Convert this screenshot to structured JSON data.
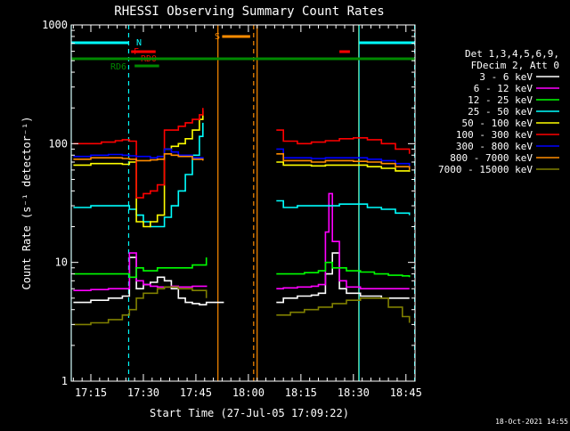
{
  "chart_data": {
    "type": "line",
    "title": "RHESSI Observing Summary Count Rates",
    "xlabel": "Start Time (27-Jul-05 17:09:22)",
    "ylabel": "Count Rate (s⁻¹ detector⁻¹)",
    "ylim": [
      1,
      1000
    ],
    "yscale": "log",
    "x_range_minutes_after_17_00": [
      9.4,
      107.6
    ],
    "x_ticks": [
      {
        "label": "17:15",
        "minute": 15
      },
      {
        "label": "17:30",
        "minute": 30
      },
      {
        "label": "17:45",
        "minute": 45
      },
      {
        "label": "18:00",
        "minute": 60
      },
      {
        "label": "18:15",
        "minute": 75
      },
      {
        "label": "18:30",
        "minute": 90
      },
      {
        "label": "18:45",
        "minute": 105
      }
    ],
    "y_ticks": [
      {
        "label": "1",
        "value": 1
      },
      {
        "label": "10",
        "value": 10
      },
      {
        "label": "100",
        "value": 100
      },
      {
        "label": "1000",
        "value": 1000
      }
    ],
    "legend_header": [
      "Det 1,3,4,5,6,9,",
      "FDecim 2, Att 0"
    ],
    "legend_placement": "right",
    "timestamp": "18-Oct-2021 14:55",
    "series": [
      {
        "name": "3 - 6 keV",
        "color": "#ffffff",
        "points": [
          [
            10,
            4.6
          ],
          [
            15,
            4.8
          ],
          [
            20,
            5.0
          ],
          [
            24,
            5.2
          ],
          [
            26,
            11
          ],
          [
            28,
            6
          ],
          [
            30,
            6.5
          ],
          [
            32,
            6.8
          ],
          [
            34,
            7.5
          ],
          [
            36,
            7
          ],
          [
            38,
            6
          ],
          [
            40,
            5
          ],
          [
            42,
            4.6
          ],
          [
            44,
            4.5
          ],
          [
            46,
            4.4
          ],
          [
            48,
            4.6
          ],
          [
            53,
            4.6
          ],
          [
            68,
            4.6
          ],
          [
            70,
            5
          ],
          [
            72,
            5
          ],
          [
            74,
            5.2
          ],
          [
            76,
            5.2
          ],
          [
            78,
            5.3
          ],
          [
            80,
            5.5
          ],
          [
            82,
            8
          ],
          [
            84,
            12
          ],
          [
            86,
            6
          ],
          [
            88,
            5.5
          ],
          [
            90,
            5.5
          ],
          [
            92,
            5.2
          ],
          [
            94,
            5.2
          ],
          [
            96,
            5.2
          ],
          [
            98,
            5.0
          ],
          [
            100,
            5.0
          ],
          [
            102,
            5
          ],
          [
            104,
            5
          ],
          [
            106,
            5
          ]
        ]
      },
      {
        "name": "6 - 12 keV",
        "color": "#ff00ff",
        "points": [
          [
            10,
            5.8
          ],
          [
            15,
            5.9
          ],
          [
            20,
            6.0
          ],
          [
            24,
            6.0
          ],
          [
            26,
            12
          ],
          [
            28,
            7
          ],
          [
            30,
            6.5
          ],
          [
            32,
            6.3
          ],
          [
            34,
            6.2
          ],
          [
            36,
            6.2
          ],
          [
            38,
            6.3
          ],
          [
            40,
            6.2
          ],
          [
            44,
            6.3
          ],
          [
            48,
            6.2
          ],
          [
            68,
            6.0
          ],
          [
            70,
            6.1
          ],
          [
            74,
            6.2
          ],
          [
            78,
            6.3
          ],
          [
            80,
            6.5
          ],
          [
            82,
            18
          ],
          [
            83,
            38
          ],
          [
            84,
            15
          ],
          [
            86,
            7
          ],
          [
            88,
            6.2
          ],
          [
            92,
            6
          ],
          [
            96,
            6
          ],
          [
            100,
            6
          ],
          [
            104,
            6
          ],
          [
            106,
            6
          ]
        ]
      },
      {
        "name": "12 - 25 keV",
        "color": "#00ff00",
        "points": [
          [
            10,
            8
          ],
          [
            15,
            8
          ],
          [
            20,
            8
          ],
          [
            24,
            8
          ],
          [
            26,
            7.5
          ],
          [
            28,
            9
          ],
          [
            30,
            8.5
          ],
          [
            34,
            9
          ],
          [
            38,
            9
          ],
          [
            40,
            9
          ],
          [
            44,
            9.5
          ],
          [
            48,
            11
          ],
          [
            68,
            8
          ],
          [
            72,
            8
          ],
          [
            76,
            8.2
          ],
          [
            80,
            8.5
          ],
          [
            82,
            10
          ],
          [
            84,
            9
          ],
          [
            88,
            8.5
          ],
          [
            92,
            8.3
          ],
          [
            96,
            8
          ],
          [
            100,
            7.8
          ],
          [
            104,
            7.7
          ],
          [
            106,
            7.5
          ]
        ]
      },
      {
        "name": "25 - 50 keV",
        "color": "#00ffff",
        "points": [
          [
            10,
            29
          ],
          [
            15,
            30
          ],
          [
            20,
            30
          ],
          [
            24,
            30
          ],
          [
            26,
            28
          ],
          [
            28,
            25
          ],
          [
            30,
            22
          ],
          [
            32,
            20
          ],
          [
            34,
            20
          ],
          [
            36,
            24
          ],
          [
            38,
            30
          ],
          [
            40,
            40
          ],
          [
            42,
            55
          ],
          [
            44,
            80
          ],
          [
            46,
            115
          ],
          [
            47,
            150
          ],
          [
            68,
            33
          ],
          [
            70,
            29
          ],
          [
            74,
            30
          ],
          [
            78,
            30
          ],
          [
            82,
            30
          ],
          [
            86,
            31
          ],
          [
            90,
            31
          ],
          [
            94,
            29
          ],
          [
            98,
            28
          ],
          [
            102,
            26
          ],
          [
            106,
            25
          ]
        ]
      },
      {
        "name": "50 - 100 keV",
        "color": "#ffff00",
        "points": [
          [
            10,
            66
          ],
          [
            15,
            68
          ],
          [
            20,
            68
          ],
          [
            24,
            67
          ],
          [
            26,
            70
          ],
          [
            28,
            22
          ],
          [
            30,
            20
          ],
          [
            32,
            22
          ],
          [
            34,
            25
          ],
          [
            36,
            90
          ],
          [
            38,
            95
          ],
          [
            40,
            100
          ],
          [
            42,
            110
          ],
          [
            44,
            130
          ],
          [
            46,
            160
          ],
          [
            47,
            190
          ],
          [
            68,
            70
          ],
          [
            70,
            66
          ],
          [
            74,
            66
          ],
          [
            78,
            65
          ],
          [
            82,
            66
          ],
          [
            86,
            66
          ],
          [
            90,
            66
          ],
          [
            94,
            64
          ],
          [
            98,
            62
          ],
          [
            102,
            59
          ],
          [
            106,
            58
          ]
        ]
      },
      {
        "name": "100 - 300 keV",
        "color": "#ff0000",
        "points": [
          [
            10,
            100
          ],
          [
            14,
            100
          ],
          [
            18,
            103
          ],
          [
            22,
            106
          ],
          [
            24,
            108
          ],
          [
            26,
            105
          ],
          [
            28,
            35
          ],
          [
            30,
            38
          ],
          [
            32,
            40
          ],
          [
            34,
            45
          ],
          [
            36,
            130
          ],
          [
            38,
            130
          ],
          [
            40,
            140
          ],
          [
            42,
            150
          ],
          [
            44,
            160
          ],
          [
            46,
            175
          ],
          [
            47,
            200
          ],
          [
            68,
            130
          ],
          [
            70,
            105
          ],
          [
            74,
            100
          ],
          [
            78,
            103
          ],
          [
            82,
            106
          ],
          [
            86,
            110
          ],
          [
            90,
            112
          ],
          [
            94,
            108
          ],
          [
            98,
            100
          ],
          [
            102,
            90
          ],
          [
            106,
            82
          ]
        ]
      },
      {
        "name": "300 - 800 keV",
        "color": "#0000ff",
        "points": [
          [
            10,
            78
          ],
          [
            15,
            80
          ],
          [
            20,
            81
          ],
          [
            24,
            80
          ],
          [
            26,
            79
          ],
          [
            28,
            78
          ],
          [
            30,
            78
          ],
          [
            32,
            76
          ],
          [
            34,
            78
          ],
          [
            36,
            90
          ],
          [
            38,
            85
          ],
          [
            40,
            80
          ],
          [
            44,
            76
          ],
          [
            47,
            75
          ],
          [
            68,
            90
          ],
          [
            70,
            76
          ],
          [
            74,
            76
          ],
          [
            78,
            75
          ],
          [
            82,
            76
          ],
          [
            86,
            76
          ],
          [
            90,
            76
          ],
          [
            94,
            74
          ],
          [
            98,
            72
          ],
          [
            102,
            68
          ],
          [
            106,
            64
          ]
        ]
      },
      {
        "name": "800 - 7000 keV",
        "color": "#ff8c00",
        "points": [
          [
            10,
            74
          ],
          [
            15,
            76
          ],
          [
            20,
            76
          ],
          [
            24,
            75
          ],
          [
            26,
            74
          ],
          [
            28,
            72
          ],
          [
            30,
            72
          ],
          [
            32,
            73
          ],
          [
            34,
            74
          ],
          [
            36,
            82
          ],
          [
            38,
            80
          ],
          [
            40,
            78
          ],
          [
            44,
            74
          ],
          [
            47,
            72
          ],
          [
            68,
            82
          ],
          [
            70,
            72
          ],
          [
            74,
            72
          ],
          [
            78,
            70
          ],
          [
            82,
            72
          ],
          [
            86,
            72
          ],
          [
            90,
            71
          ],
          [
            94,
            70
          ],
          [
            98,
            68
          ],
          [
            102,
            64
          ],
          [
            106,
            60
          ]
        ]
      },
      {
        "name": "7000 - 15000 keV",
        "color": "#808000",
        "points": [
          [
            10,
            3.0
          ],
          [
            15,
            3.1
          ],
          [
            20,
            3.3
          ],
          [
            24,
            3.6
          ],
          [
            26,
            4
          ],
          [
            28,
            5
          ],
          [
            30,
            5.5
          ],
          [
            34,
            6
          ],
          [
            36,
            6.2
          ],
          [
            40,
            6
          ],
          [
            44,
            5.8
          ],
          [
            48,
            5
          ],
          [
            68,
            3.6
          ],
          [
            72,
            3.8
          ],
          [
            76,
            4
          ],
          [
            80,
            4.2
          ],
          [
            84,
            4.5
          ],
          [
            88,
            4.8
          ],
          [
            92,
            5
          ],
          [
            96,
            5
          ],
          [
            100,
            4.2
          ],
          [
            104,
            3.5
          ],
          [
            106,
            3.1
          ]
        ]
      }
    ],
    "flags": [
      {
        "label": "N",
        "color": "#00ffff",
        "intervals": [
          [
            9.4,
            25.8
          ],
          [
            91.6,
            107.6
          ]
        ]
      },
      {
        "label": "F",
        "color": "#ff0000",
        "intervals": [
          [
            26.5,
            33.5
          ],
          [
            86,
            89
          ]
        ]
      },
      {
        "label": "RD0",
        "color": "#ff0000",
        "intervals": []
      },
      {
        "label": "RD6",
        "color": "#008800",
        "intervals": [
          [
            27.5,
            34.5
          ]
        ]
      },
      {
        "label": "S",
        "color": "#ff8c00",
        "intervals": [
          [
            52.5,
            60.5
          ]
        ]
      }
    ],
    "regions": [
      {
        "start": 9.4,
        "end": 25.8,
        "color": "#00ffff",
        "edge_style": "solid-dashed"
      },
      {
        "start": 51.3,
        "end": 61.5,
        "color": "#ff8c00",
        "edge_style": "solid-dashed"
      },
      {
        "start": 62.5,
        "end": 91.5,
        "color": "#ff8c00",
        "edge_style": "solid"
      },
      {
        "start": 91.6,
        "end": 107.5,
        "color": "#00ffff",
        "edge_style": "solid-dashed"
      }
    ]
  }
}
